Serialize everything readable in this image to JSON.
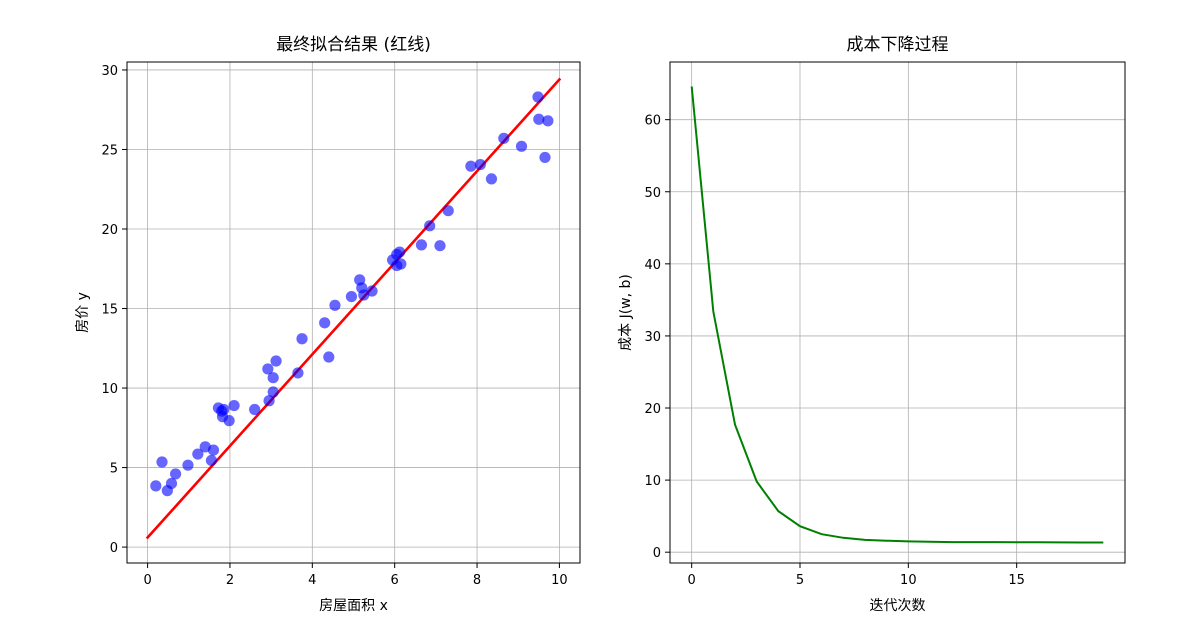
{
  "chart_data": [
    {
      "type": "scatter",
      "title": "最终拟合结果 (红线)",
      "xlabel": "房屋面积 x",
      "ylabel": "房价 y",
      "xlim": [
        -0.5,
        10.5
      ],
      "ylim": [
        -1,
        30.5
      ],
      "xticks": [
        0,
        2,
        4,
        6,
        8,
        10
      ],
      "yticks": [
        0,
        5,
        10,
        15,
        20,
        25,
        30
      ],
      "grid": true,
      "points_color": "#0000ff",
      "line_color": "#ff0000",
      "points": [
        [
          0.2,
          3.85
        ],
        [
          0.35,
          5.35
        ],
        [
          0.48,
          3.55
        ],
        [
          0.58,
          4.0
        ],
        [
          0.68,
          4.6
        ],
        [
          0.98,
          5.15
        ],
        [
          1.22,
          5.85
        ],
        [
          1.4,
          6.3
        ],
        [
          1.55,
          5.45
        ],
        [
          1.6,
          6.1
        ],
        [
          1.72,
          8.75
        ],
        [
          1.8,
          8.55
        ],
        [
          1.82,
          8.2
        ],
        [
          1.85,
          8.65
        ],
        [
          1.98,
          7.95
        ],
        [
          2.1,
          8.9
        ],
        [
          2.6,
          8.65
        ],
        [
          2.92,
          11.2
        ],
        [
          2.95,
          9.2
        ],
        [
          3.05,
          9.75
        ],
        [
          3.05,
          10.65
        ],
        [
          3.12,
          11.7
        ],
        [
          3.65,
          10.95
        ],
        [
          3.75,
          13.1
        ],
        [
          4.3,
          14.1
        ],
        [
          4.4,
          11.95
        ],
        [
          4.55,
          15.2
        ],
        [
          4.95,
          15.75
        ],
        [
          5.15,
          16.8
        ],
        [
          5.2,
          16.3
        ],
        [
          5.25,
          15.85
        ],
        [
          5.45,
          16.1
        ],
        [
          5.95,
          18.05
        ],
        [
          6.05,
          17.7
        ],
        [
          6.05,
          18.4
        ],
        [
          6.12,
          18.55
        ],
        [
          6.15,
          17.8
        ],
        [
          6.65,
          19.0
        ],
        [
          6.85,
          20.2
        ],
        [
          7.1,
          18.95
        ],
        [
          7.3,
          21.15
        ],
        [
          7.85,
          23.95
        ],
        [
          8.08,
          24.05
        ],
        [
          8.35,
          23.15
        ],
        [
          8.65,
          25.7
        ],
        [
          9.08,
          25.2
        ],
        [
          9.48,
          28.3
        ],
        [
          9.5,
          26.9
        ],
        [
          9.65,
          24.5
        ],
        [
          9.72,
          26.8
        ]
      ],
      "fit_line": {
        "x": [
          0,
          10
        ],
        "y": [
          0.6,
          29.4
        ]
      }
    },
    {
      "type": "line",
      "title": "成本下降过程",
      "xlabel": "迭代次数",
      "ylabel": "成本 J(w, b)",
      "xlim": [
        -1,
        20
      ],
      "ylim": [
        -1.5,
        68
      ],
      "xticks": [
        0,
        5,
        10,
        15
      ],
      "yticks": [
        0,
        10,
        20,
        30,
        40,
        50,
        60
      ],
      "grid": true,
      "line_color": "#008000",
      "x": [
        0,
        1,
        2,
        3,
        4,
        5,
        6,
        7,
        8,
        9,
        10,
        11,
        12,
        13,
        14,
        15,
        16,
        17,
        18,
        19
      ],
      "y": [
        64.6,
        33.4,
        17.7,
        9.8,
        5.7,
        3.6,
        2.5,
        2.0,
        1.7,
        1.6,
        1.5,
        1.45,
        1.4,
        1.4,
        1.4,
        1.38,
        1.37,
        1.36,
        1.35,
        1.35
      ]
    }
  ]
}
